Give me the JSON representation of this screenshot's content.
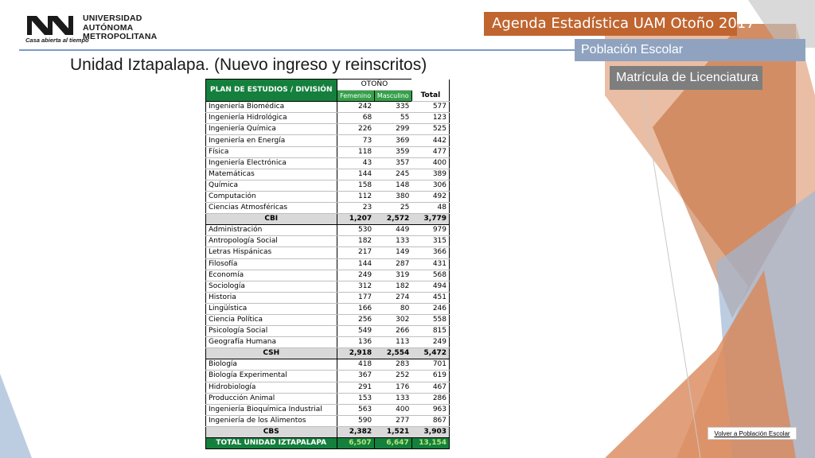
{
  "header": {
    "university_line1": "UNIVERSIDAD",
    "university_line2": "AUTÓNOMA",
    "university_line3": "METROPOLITANA",
    "tagline": "Casa abierta al tiempo",
    "banner_agenda": "Agenda Estadística UAM  Otoño 2017",
    "banner_section": "Población Escolar",
    "banner_subsection": "Matrícula de Licenciatura"
  },
  "page_title": "Unidad Iztapalapa. (Nuevo ingreso y reinscritos)",
  "table": {
    "col_plan": "PLAN DE ESTUDIOS / DIVISIÓN",
    "col_period": "OTOÑO",
    "col_fem": "Femenino",
    "col_mas": "Masculino",
    "col_total": "Total",
    "rows": [
      {
        "plan": "Ingeniería Biomédica",
        "fem": "242",
        "mas": "335",
        "total": "577"
      },
      {
        "plan": "Ingeniería Hidrológica",
        "fem": "68",
        "mas": "55",
        "total": "123"
      },
      {
        "plan": "Ingeniería Química",
        "fem": "226",
        "mas": "299",
        "total": "525"
      },
      {
        "plan": "Ingeniería en Energía",
        "fem": "73",
        "mas": "369",
        "total": "442"
      },
      {
        "plan": "Física",
        "fem": "118",
        "mas": "359",
        "total": "477"
      },
      {
        "plan": "Ingeniería Electrónica",
        "fem": "43",
        "mas": "357",
        "total": "400"
      },
      {
        "plan": "Matemáticas",
        "fem": "144",
        "mas": "245",
        "total": "389"
      },
      {
        "plan": "Química",
        "fem": "158",
        "mas": "148",
        "total": "306"
      },
      {
        "plan": "Computación",
        "fem": "112",
        "mas": "380",
        "total": "492"
      },
      {
        "plan": "Ciencias Atmosféricas",
        "fem": "23",
        "mas": "25",
        "total": "48"
      },
      {
        "plan": "CBI",
        "fem": "1,207",
        "mas": "2,572",
        "total": "3,779",
        "kind": "sub"
      },
      {
        "plan": "Administración",
        "fem": "530",
        "mas": "449",
        "total": "979"
      },
      {
        "plan": "Antropología Social",
        "fem": "182",
        "mas": "133",
        "total": "315"
      },
      {
        "plan": "Letras Hispánicas",
        "fem": "217",
        "mas": "149",
        "total": "366"
      },
      {
        "plan": "Filosofía",
        "fem": "144",
        "mas": "287",
        "total": "431"
      },
      {
        "plan": "Economía",
        "fem": "249",
        "mas": "319",
        "total": "568"
      },
      {
        "plan": "Sociología",
        "fem": "312",
        "mas": "182",
        "total": "494"
      },
      {
        "plan": "Historia",
        "fem": "177",
        "mas": "274",
        "total": "451"
      },
      {
        "plan": "Lingüística",
        "fem": "166",
        "mas": "80",
        "total": "246"
      },
      {
        "plan": "Ciencia Política",
        "fem": "256",
        "mas": "302",
        "total": "558"
      },
      {
        "plan": "Psicología Social",
        "fem": "549",
        "mas": "266",
        "total": "815"
      },
      {
        "plan": "Geografía Humana",
        "fem": "136",
        "mas": "113",
        "total": "249"
      },
      {
        "plan": "CSH",
        "fem": "2,918",
        "mas": "2,554",
        "total": "5,472",
        "kind": "sub"
      },
      {
        "plan": "Biología",
        "fem": "418",
        "mas": "283",
        "total": "701"
      },
      {
        "plan": "Biología Experimental",
        "fem": "367",
        "mas": "252",
        "total": "619"
      },
      {
        "plan": "Hidrobiología",
        "fem": "291",
        "mas": "176",
        "total": "467"
      },
      {
        "plan": "Producción Animal",
        "fem": "153",
        "mas": "133",
        "total": "286"
      },
      {
        "plan": "Ingeniería Bioquímica Industrial",
        "fem": "563",
        "mas": "400",
        "total": "963"
      },
      {
        "plan": "Ingeniería de los Alimentos",
        "fem": "590",
        "mas": "277",
        "total": "867"
      },
      {
        "plan": "CBS",
        "fem": "2,382",
        "mas": "1,521",
        "total": "3,903",
        "kind": "sub"
      },
      {
        "plan": "TOTAL UNIDAD IZTAPALAPA",
        "fem": "6,507",
        "mas": "6,647",
        "total": "13,154",
        "kind": "grand"
      }
    ]
  },
  "footer": {
    "back_link": "Volver a Población Escolar"
  },
  "colors": {
    "banner_orange": "#c0652f",
    "banner_blue": "#8fa3c0",
    "banner_gray": "#7e7e7e",
    "table_green": "#15803d",
    "grand_total_text": "#b7e77b"
  }
}
